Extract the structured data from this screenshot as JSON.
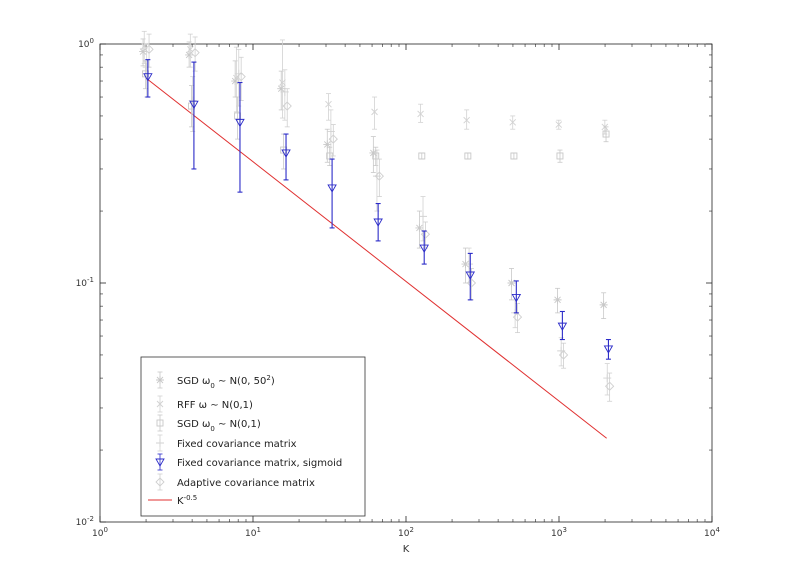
{
  "chart_data": {
    "type": "scatter",
    "title": "",
    "xlabel": "K",
    "ylabel": "",
    "xscale": "log",
    "yscale": "log",
    "xlim": [
      1,
      10000
    ],
    "ylim": [
      0.01,
      1
    ],
    "grid": false,
    "legend_position": "bottom-left",
    "x_ticks": [
      {
        "value": 1,
        "base": "10",
        "exp": "0"
      },
      {
        "value": 10,
        "base": "10",
        "exp": "1"
      },
      {
        "value": 100,
        "base": "10",
        "exp": "2"
      },
      {
        "value": 1000,
        "base": "10",
        "exp": "3"
      },
      {
        "value": 10000,
        "base": "10",
        "exp": "4"
      }
    ],
    "y_ticks": [
      {
        "value": 0.01,
        "base": "10",
        "exp": "-2"
      },
      {
        "value": 0.1,
        "base": "10",
        "exp": "-1"
      },
      {
        "value": 1,
        "base": "10",
        "exp": "0"
      }
    ],
    "series": [
      {
        "name_parts": [
          {
            "t": "SGD "
          },
          {
            "t": "ω"
          },
          {
            "t": "0",
            "sub": true
          },
          {
            "t": " ∼ N(0, 50"
          },
          {
            "t": "2",
            "sup": true
          },
          {
            "t": ")"
          }
        ],
        "marker": "star",
        "color": "#c8c8c8",
        "x": [
          2,
          4,
          8,
          16,
          32,
          64,
          128,
          256,
          512,
          1024,
          2048
        ],
        "y": [
          0.93,
          0.9,
          0.7,
          0.65,
          0.38,
          0.35,
          0.17,
          0.12,
          0.1,
          0.085,
          0.081
        ],
        "err_low": [
          0.12,
          0.1,
          0.1,
          0.12,
          0.06,
          0.06,
          0.03,
          0.02,
          0.015,
          0.01,
          0.01
        ],
        "err_high": [
          0.12,
          0.12,
          0.15,
          0.12,
          0.06,
          0.06,
          0.03,
          0.02,
          0.015,
          0.01,
          0.01
        ]
      },
      {
        "name_parts": [
          {
            "t": "RFF "
          },
          {
            "t": "ω"
          },
          {
            "t": " ∼ N(0,1)"
          }
        ],
        "marker": "cross",
        "color": "#d2d2d2",
        "x": [
          2,
          4,
          8,
          16,
          32,
          64,
          128,
          256,
          512,
          1024,
          2048
        ],
        "y": [
          0.98,
          0.95,
          0.72,
          0.69,
          0.56,
          0.52,
          0.51,
          0.48,
          0.47,
          0.46,
          0.45
        ],
        "err_low": [
          0.15,
          0.15,
          0.2,
          0.2,
          0.08,
          0.08,
          0.04,
          0.04,
          0.03,
          0.02,
          0.03
        ],
        "err_high": [
          0.15,
          0.15,
          0.25,
          0.35,
          0.06,
          0.08,
          0.05,
          0.05,
          0.03,
          0.02,
          0.03
        ]
      },
      {
        "name_parts": [
          {
            "t": "SGD "
          },
          {
            "t": "ω"
          },
          {
            "t": "0",
            "sub": true
          },
          {
            "t": " ∼ N(0,1)"
          }
        ],
        "marker": "square",
        "color": "#c8c8c8",
        "x": [
          2,
          4,
          8,
          16,
          32,
          64,
          128,
          256,
          512,
          1024,
          2048
        ],
        "y": [
          0.75,
          0.55,
          0.5,
          0.36,
          0.34,
          0.34,
          0.34,
          0.34,
          0.34,
          0.34,
          0.42
        ],
        "err_low": [
          0.1,
          0.1,
          0.1,
          0.06,
          0.03,
          0.03,
          0.01,
          0.01,
          0.01,
          0.02,
          0.03
        ],
        "err_high": [
          0.1,
          0.12,
          0.1,
          0.06,
          0.03,
          0.03,
          0.01,
          0.01,
          0.01,
          0.02,
          0.03
        ]
      },
      {
        "name_parts": [
          {
            "t": "Fixed covariance matrix"
          }
        ],
        "marker": "plus",
        "color": "#d2d2d2",
        "x": [
          2,
          4,
          8,
          16,
          32,
          64,
          128,
          256,
          512,
          1024,
          2048
        ],
        "y": [
          0.8,
          0.58,
          0.75,
          0.63,
          0.43,
          0.28,
          0.19,
          0.12,
          0.075,
          0.052,
          0.04
        ],
        "err_low": [
          0.2,
          0.15,
          0.2,
          0.15,
          0.1,
          0.08,
          0.04,
          0.02,
          0.01,
          0.007,
          0.006
        ],
        "err_high": [
          0.2,
          0.15,
          0.2,
          0.15,
          0.1,
          0.08,
          0.04,
          0.02,
          0.01,
          0.007,
          0.006
        ]
      },
      {
        "name_parts": [
          {
            "t": "Fixed covariance matrix, sigmoid"
          }
        ],
        "marker": "triangle-down",
        "color": "#2b2bc8",
        "x": [
          2,
          4,
          8,
          16,
          32,
          64,
          128,
          256,
          512,
          1024,
          2048
        ],
        "y": [
          0.73,
          0.56,
          0.47,
          0.35,
          0.25,
          0.18,
          0.14,
          0.108,
          0.087,
          0.066,
          0.053
        ],
        "err_low": [
          0.13,
          0.26,
          0.23,
          0.08,
          0.08,
          0.03,
          0.02,
          0.023,
          0.012,
          0.008,
          0.005
        ],
        "err_high": [
          0.13,
          0.28,
          0.22,
          0.07,
          0.08,
          0.035,
          0.025,
          0.025,
          0.015,
          0.01,
          0.005
        ]
      },
      {
        "name_parts": [
          {
            "t": "Adaptive covariance matrix"
          }
        ],
        "marker": "diamond",
        "color": "#cfcfcf",
        "x": [
          2,
          4,
          8,
          16,
          32,
          64,
          128,
          256,
          512,
          1024,
          2048
        ],
        "y": [
          0.95,
          0.92,
          0.73,
          0.55,
          0.4,
          0.28,
          0.16,
          0.1,
          0.072,
          0.05,
          0.037
        ],
        "err_low": [
          0.15,
          0.15,
          0.15,
          0.1,
          0.06,
          0.05,
          0.02,
          0.015,
          0.01,
          0.006,
          0.005
        ],
        "err_high": [
          0.15,
          0.15,
          0.15,
          0.1,
          0.06,
          0.05,
          0.02,
          0.015,
          0.01,
          0.006,
          0.005
        ]
      }
    ],
    "reference_line": {
      "name_parts": [
        {
          "t": "K"
        },
        {
          "t": "-0.5",
          "sup": true
        }
      ],
      "color": "#e03030",
      "x": [
        2,
        2048
      ],
      "y": [
        0.72,
        0.0224
      ]
    }
  }
}
